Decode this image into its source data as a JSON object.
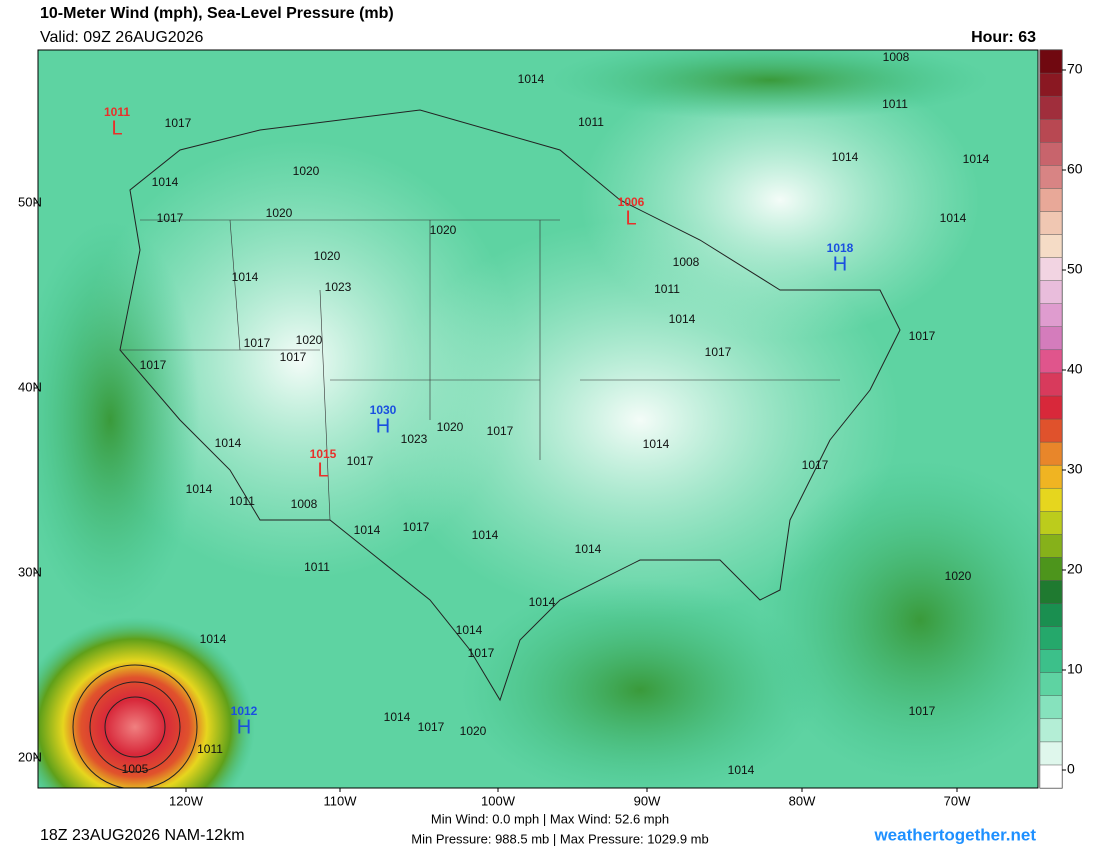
{
  "header": {
    "title": "10-Meter Wind (mph), Sea-Level Pressure (mb)",
    "valid": "Valid: 09Z 26AUG2026",
    "hour": "Hour: 63"
  },
  "map": {
    "latitude_labels": [
      "50N",
      "40N",
      "30N",
      "20N"
    ],
    "longitude_labels": [
      "120W",
      "110W",
      "100W",
      "90W",
      "80W",
      "70W"
    ],
    "isobar_labels": [
      1017,
      1014,
      1020,
      1020,
      1017,
      1020,
      1014,
      1023,
      1020,
      1017,
      1017,
      1020,
      1017,
      1014,
      1014,
      1011,
      1008,
      1017,
      1023,
      1020,
      1017,
      1014,
      1017,
      1014,
      1011,
      1014,
      1014,
      1017,
      1014,
      1014,
      1014,
      1017,
      1020,
      1014,
      1017,
      1020,
      1011,
      1005,
      1017,
      1014,
      1014,
      1011,
      1008,
      1011,
      1014,
      1014,
      1014,
      1008,
      1011,
      1014,
      1017,
      1017
    ],
    "centers": [
      {
        "type": "L",
        "pressure": 1011
      },
      {
        "type": "L",
        "pressure": 1015
      },
      {
        "type": "H",
        "pressure": 1030
      },
      {
        "type": "L",
        "pressure": 1006
      },
      {
        "type": "H",
        "pressure": 1018
      },
      {
        "type": "H",
        "pressure": 1012
      }
    ]
  },
  "colorbar": {
    "lim": [
      -1.8,
      72
    ],
    "ticks": [
      0,
      10,
      20,
      30,
      40,
      50,
      60,
      70
    ],
    "colors": [
      "#ffffff",
      "#dff7ec",
      "#b4eed6",
      "#86e2bd",
      "#5ed3a2",
      "#3cc08a",
      "#25a86b",
      "#1a8f50",
      "#1f7a30",
      "#4d951c",
      "#86b11a",
      "#bccc1c",
      "#e6d61e",
      "#f0b422",
      "#e8862a",
      "#e0522c",
      "#d8283a",
      "#d83a5c",
      "#e0558c",
      "#d47cbc",
      "#df9ccf",
      "#e9bddc",
      "#f2d4e2",
      "#f5dcc6",
      "#f0c7b2",
      "#e8a898",
      "#d88484",
      "#c8646c",
      "#b84852",
      "#a02e3c",
      "#8a1822",
      "#700810"
    ]
  },
  "footer": {
    "run": "18Z 23AUG2026 NAM-12km",
    "wind_stats": "Min Wind:  0.0 mph | Max Wind: 52.6 mph",
    "pressure_stats": "Min Pressure: 988.5 mb | Max Pressure: 1029.9 mb",
    "site": "weathertogether.net"
  }
}
